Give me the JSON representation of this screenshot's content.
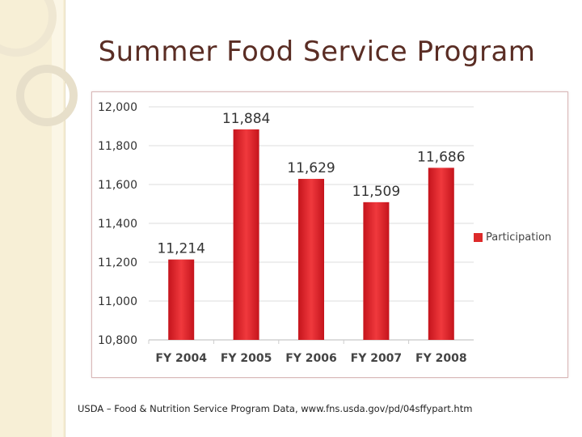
{
  "slide": {
    "title": "Summer Food Service Program",
    "source": "USDA – Food & Nutrition Service Program Data, www.fns.usda.gov/pd/04sffypart.htm"
  },
  "chart_data": {
    "type": "bar",
    "title": "",
    "categories": [
      "FY 2004",
      "FY 2005",
      "FY 2006",
      "FY 2007",
      "FY 2008"
    ],
    "series": [
      {
        "name": "Participation",
        "values": [
          11214,
          11884,
          11629,
          11509,
          11686
        ]
      }
    ],
    "value_labels": [
      "11,214",
      "11,884",
      "11,629",
      "11,509",
      "11,686"
    ],
    "yticks": [
      10800,
      11000,
      11200,
      11400,
      11600,
      11800,
      12000
    ],
    "ytick_labels": [
      "10,800",
      "11,000",
      "11,200",
      "11,400",
      "11,600",
      "11,800",
      "12,000"
    ],
    "ylim": [
      10800,
      12000
    ],
    "xlabel": "",
    "ylabel": "",
    "grid": true,
    "legend_position": "right",
    "colors": {
      "bar": "#e01f26",
      "bar_light": "#f04a4a",
      "grid": "#dcdcdc",
      "axis_text": "#333333"
    }
  }
}
